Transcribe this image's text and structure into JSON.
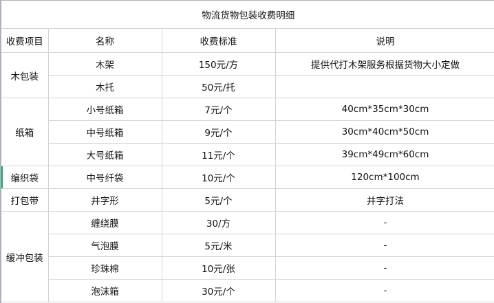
{
  "title": "物流货物包装收费明细",
  "headers": [
    "收费项目",
    "名称",
    "收费标准",
    "说明"
  ],
  "groups": [
    {
      "category": "木包装",
      "rows": [
        {
          "name": "木架",
          "price": "150元/方",
          "note": "提供代打木架服务根据货物大小定做"
        },
        {
          "name": "木托",
          "price": "50元/托",
          "note": ""
        }
      ]
    },
    {
      "category": "纸箱",
      "rows": [
        {
          "name": "小号纸箱",
          "price": "7元/个",
          "note": "40cm*35cm*30cm"
        },
        {
          "name": "中号纸箱",
          "price": "9元/个",
          "note": "30cm*40cm*50cm"
        },
        {
          "name": "大号纸箱",
          "price": "11元/个",
          "note": "39cm*49cm*60cm"
        }
      ]
    },
    {
      "category": "编织袋",
      "rows": [
        {
          "name": "中号纤袋",
          "price": "10元/个",
          "note": "120cm*100cm"
        }
      ]
    },
    {
      "category": "打包带",
      "rows": [
        {
          "name": "井字形",
          "price": "5元/个",
          "note": "井字打法"
        }
      ]
    },
    {
      "category": "缓冲包装",
      "rows": [
        {
          "name": "缠绕膜",
          "price": "30/方",
          "note": "-"
        },
        {
          "name": "气泡膜",
          "price": "5元/米",
          "note": "-"
        },
        {
          "name": "珍珠棉",
          "price": "10元/张",
          "note": "-"
        },
        {
          "name": "泡沫箱",
          "price": "30元/个",
          "note": "-"
        }
      ]
    }
  ]
}
